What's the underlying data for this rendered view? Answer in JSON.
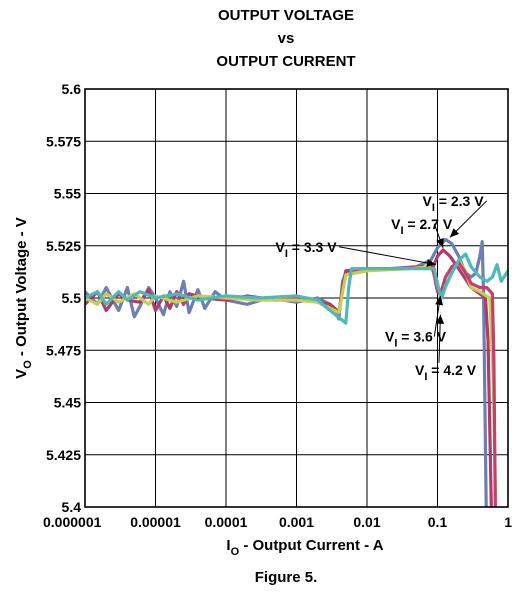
{
  "chart_data": {
    "type": "line",
    "title_lines": [
      "OUTPUT VOLTAGE",
      "vs",
      "OUTPUT CURRENT"
    ],
    "xlabel": {
      "main": "I",
      "sub": "O",
      "rest": " - Output Current - A"
    },
    "ylabel": {
      "main": "V",
      "sub": "O",
      "rest": " - Output Voltage - V"
    },
    "x_scale": "log",
    "xlim": [
      1e-06,
      1
    ],
    "ylim": [
      5.4,
      5.6
    ],
    "grid": true,
    "x_ticks": [
      {
        "value": 1e-06,
        "label": "0.000001"
      },
      {
        "value": 1e-05,
        "label": "0.00001"
      },
      {
        "value": 0.0001,
        "label": "0.0001"
      },
      {
        "value": 0.001,
        "label": "0.001"
      },
      {
        "value": 0.01,
        "label": "0.01"
      },
      {
        "value": 0.1,
        "label": "0.1"
      },
      {
        "value": 1,
        "label": "1"
      }
    ],
    "y_ticks": [
      {
        "value": 5.6,
        "label": "5.6"
      },
      {
        "value": 5.575,
        "label": "5.575"
      },
      {
        "value": 5.55,
        "label": "5.55"
      },
      {
        "value": 5.525,
        "label": "5.525"
      },
      {
        "value": 5.5,
        "label": "5.5"
      },
      {
        "value": 5.475,
        "label": "5.475"
      },
      {
        "value": 5.45,
        "label": "5.45"
      },
      {
        "value": 5.425,
        "label": "5.425"
      },
      {
        "value": 5.4,
        "label": "5.4"
      }
    ],
    "series": [
      {
        "name": "VI = 2.3 V",
        "label_main": "V",
        "label_sub": "I",
        "label_rest": " = 2.3 V",
        "color": "#6c7fb0",
        "points": [
          [
            1e-06,
            5.503
          ],
          [
            1.5e-06,
            5.497
          ],
          [
            2e-06,
            5.505
          ],
          [
            3e-06,
            5.494
          ],
          [
            4e-06,
            5.505
          ],
          [
            5e-06,
            5.491
          ],
          [
            6e-06,
            5.496
          ],
          [
            8e-06,
            5.505
          ],
          [
            1e-05,
            5.5
          ],
          [
            1.3e-05,
            5.492
          ],
          [
            1.6e-05,
            5.503
          ],
          [
            2e-05,
            5.496
          ],
          [
            2.5e-05,
            5.508
          ],
          [
            3e-05,
            5.493
          ],
          [
            4e-05,
            5.504
          ],
          [
            5e-05,
            5.495
          ],
          [
            7e-05,
            5.503
          ],
          [
            0.0001,
            5.499
          ],
          [
            0.0002,
            5.497
          ],
          [
            0.0004,
            5.5
          ],
          [
            0.001,
            5.498
          ],
          [
            0.002,
            5.5
          ],
          [
            0.003,
            5.497
          ],
          [
            0.004,
            5.49
          ],
          [
            0.0045,
            5.508
          ],
          [
            0.005,
            5.512
          ],
          [
            0.007,
            5.514
          ],
          [
            0.01,
            5.514
          ],
          [
            0.02,
            5.514
          ],
          [
            0.05,
            5.515
          ],
          [
            0.08,
            5.518
          ],
          [
            0.1,
            5.524
          ],
          [
            0.13,
            5.528
          ],
          [
            0.16,
            5.526
          ],
          [
            0.2,
            5.52
          ],
          [
            0.25,
            5.512
          ],
          [
            0.3,
            5.51
          ],
          [
            0.35,
            5.512
          ],
          [
            0.4,
            5.52
          ],
          [
            0.43,
            5.527
          ],
          [
            0.45,
            5.5
          ],
          [
            0.47,
            5.45
          ],
          [
            0.49,
            5.4
          ]
        ]
      },
      {
        "name": "VI = 2.7 V",
        "label_main": "V",
        "label_sub": "I",
        "label_rest": " = 2.7 V",
        "color": "#b03a6a",
        "points": [
          [
            1e-06,
            5.497
          ],
          [
            1.5e-06,
            5.503
          ],
          [
            2e-06,
            5.494
          ],
          [
            3e-06,
            5.502
          ],
          [
            4e-06,
            5.499
          ],
          [
            6e-06,
            5.498
          ],
          [
            8e-06,
            5.504
          ],
          [
            1e-05,
            5.494
          ],
          [
            1.3e-05,
            5.501
          ],
          [
            1.6e-05,
            5.495
          ],
          [
            2e-05,
            5.503
          ],
          [
            2.5e-05,
            5.497
          ],
          [
            3e-05,
            5.502
          ],
          [
            5e-05,
            5.5
          ],
          [
            0.0001,
            5.499
          ],
          [
            0.0002,
            5.501
          ],
          [
            0.0005,
            5.499
          ],
          [
            0.001,
            5.5
          ],
          [
            0.002,
            5.498
          ],
          [
            0.003,
            5.497
          ],
          [
            0.0035,
            5.495
          ],
          [
            0.004,
            5.493
          ],
          [
            0.0045,
            5.505
          ],
          [
            0.005,
            5.513
          ],
          [
            0.01,
            5.514
          ],
          [
            0.03,
            5.514
          ],
          [
            0.06,
            5.515
          ],
          [
            0.085,
            5.514
          ],
          [
            0.1,
            5.52
          ],
          [
            0.12,
            5.523
          ],
          [
            0.15,
            5.52
          ],
          [
            0.2,
            5.514
          ],
          [
            0.3,
            5.505
          ],
          [
            0.4,
            5.502
          ],
          [
            0.48,
            5.5
          ],
          [
            0.52,
            5.48
          ],
          [
            0.55,
            5.44
          ],
          [
            0.58,
            5.4
          ]
        ]
      },
      {
        "name": "VI = 3.3 V",
        "label_main": "V",
        "label_sub": "I",
        "label_rest": " = 3.3 V",
        "color": "#c9cd55",
        "points": [
          [
            1e-06,
            5.5
          ],
          [
            1.5e-06,
            5.497
          ],
          [
            2e-06,
            5.502
          ],
          [
            3e-06,
            5.498
          ],
          [
            5e-06,
            5.502
          ],
          [
            8e-06,
            5.497
          ],
          [
            1e-05,
            5.501
          ],
          [
            2e-05,
            5.498
          ],
          [
            4e-05,
            5.501
          ],
          [
            0.0001,
            5.5
          ],
          [
            0.0003,
            5.499
          ],
          [
            0.001,
            5.499
          ],
          [
            0.002,
            5.498
          ],
          [
            0.004,
            5.493
          ],
          [
            0.005,
            5.511
          ],
          [
            0.01,
            5.513
          ],
          [
            0.04,
            5.514
          ],
          [
            0.08,
            5.515
          ],
          [
            0.1,
            5.508
          ],
          [
            0.11,
            5.499
          ],
          [
            0.13,
            5.505
          ],
          [
            0.16,
            5.512
          ],
          [
            0.2,
            5.518
          ],
          [
            0.24,
            5.514
          ],
          [
            0.3,
            5.505
          ],
          [
            0.4,
            5.503
          ],
          [
            0.55,
            5.5
          ],
          [
            0.62,
            5.46
          ],
          [
            0.67,
            5.4
          ]
        ]
      },
      {
        "name": "VI = 3.6 V",
        "label_main": "V",
        "label_sub": "I",
        "label_rest": " = 3.6 V",
        "color": "#c1406e",
        "points": [
          [
            0.085,
            5.515
          ],
          [
            0.1,
            5.503
          ],
          [
            0.11,
            5.502
          ],
          [
            0.13,
            5.51
          ],
          [
            0.16,
            5.515
          ],
          [
            0.2,
            5.517
          ],
          [
            0.25,
            5.512
          ],
          [
            0.3,
            5.507
          ],
          [
            0.4,
            5.505
          ],
          [
            0.5,
            5.505
          ],
          [
            0.6,
            5.502
          ],
          [
            0.63,
            5.47
          ],
          [
            0.66,
            5.4
          ]
        ]
      },
      {
        "name": "VI = 4.2 V",
        "label_main": "V",
        "label_sub": "I",
        "label_rest": " = 4.2 V",
        "color": "#4fb8b8",
        "points": [
          [
            1e-06,
            5.5
          ],
          [
            1.5e-06,
            5.503
          ],
          [
            2e-06,
            5.497
          ],
          [
            3e-06,
            5.503
          ],
          [
            4e-06,
            5.499
          ],
          [
            6e-06,
            5.503
          ],
          [
            1e-05,
            5.5
          ],
          [
            2e-05,
            5.502
          ],
          [
            4e-05,
            5.499
          ],
          [
            0.0001,
            5.501
          ],
          [
            0.0003,
            5.5
          ],
          [
            0.001,
            5.501
          ],
          [
            0.002,
            5.499
          ],
          [
            0.003,
            5.494
          ],
          [
            0.005,
            5.488
          ],
          [
            0.0055,
            5.505
          ],
          [
            0.006,
            5.514
          ],
          [
            0.01,
            5.514
          ],
          [
            0.05,
            5.514
          ],
          [
            0.09,
            5.514
          ],
          [
            0.1,
            5.506
          ],
          [
            0.115,
            5.5
          ],
          [
            0.13,
            5.506
          ],
          [
            0.16,
            5.512
          ],
          [
            0.2,
            5.518
          ],
          [
            0.25,
            5.521
          ],
          [
            0.3,
            5.515
          ],
          [
            0.4,
            5.51
          ],
          [
            0.5,
            5.508
          ],
          [
            0.6,
            5.51
          ],
          [
            0.7,
            5.516
          ],
          [
            0.8,
            5.508
          ],
          [
            1,
            5.513
          ]
        ]
      }
    ],
    "annotations": [
      {
        "series": 0,
        "label_x": 0.45,
        "label_y": 5.5465,
        "anchor": "end",
        "line_from": [
          0.5,
          5.5465
        ],
        "arrow_to": [
          0.15,
          5.529
        ]
      },
      {
        "series": 1,
        "label_x": 0.022,
        "label_y": 5.5355,
        "anchor": "start",
        "line_from": [
          0.09,
          5.5355
        ],
        "arrow_to": [
          0.12,
          5.524
        ]
      },
      {
        "series": 2,
        "label_x": 0.0037,
        "label_y": 5.5245,
        "anchor": "end",
        "line_from": [
          0.004,
          5.5245
        ],
        "arrow_to": [
          0.095,
          5.516
        ]
      },
      {
        "series": 3,
        "label_x": 0.018,
        "label_y": 5.4815,
        "anchor": "start",
        "line_from": [
          0.09,
          5.4815
        ],
        "arrow_to": [
          0.11,
          5.501
        ]
      },
      {
        "series": 4,
        "label_x": 0.048,
        "label_y": 5.4655,
        "anchor": "start",
        "line_from": [
          0.105,
          5.469
        ],
        "arrow_to": [
          0.11,
          5.492
        ]
      }
    ]
  },
  "caption": "Figure 5."
}
